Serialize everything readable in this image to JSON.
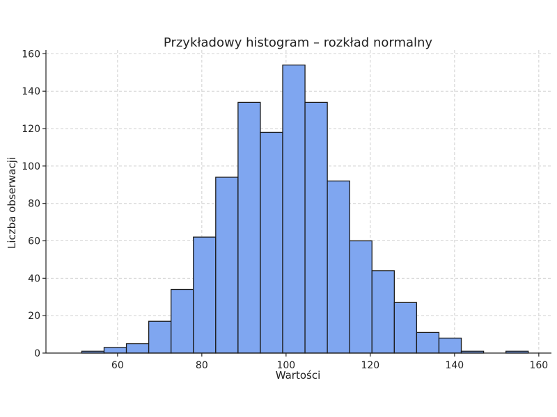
{
  "chart_data": {
    "type": "bar",
    "title": "Przykładowy histogram – rozkład normalny",
    "xlabel": "Wartości",
    "ylabel": "Liczba obserwacji",
    "bin_edges": [
      51.5,
      56.8,
      62.1,
      67.4,
      72.7,
      78.0,
      83.3,
      88.6,
      93.9,
      99.2,
      104.5,
      109.8,
      115.1,
      120.4,
      125.7,
      131.0,
      136.3,
      141.6,
      146.9,
      152.2,
      157.5
    ],
    "values": [
      1,
      3,
      5,
      17,
      34,
      62,
      94,
      134,
      118,
      154,
      134,
      92,
      60,
      44,
      27,
      11,
      8,
      1,
      0,
      1
    ],
    "xlim": [
      43,
      163
    ],
    "ylim": [
      0,
      162
    ],
    "xticks": [
      60,
      80,
      100,
      120,
      140,
      160
    ],
    "yticks": [
      0,
      20,
      40,
      60,
      80,
      100,
      120,
      140,
      160
    ],
    "grid": true,
    "bar_color": "#7fa6f0",
    "edge_color": "#1a1a1a"
  }
}
